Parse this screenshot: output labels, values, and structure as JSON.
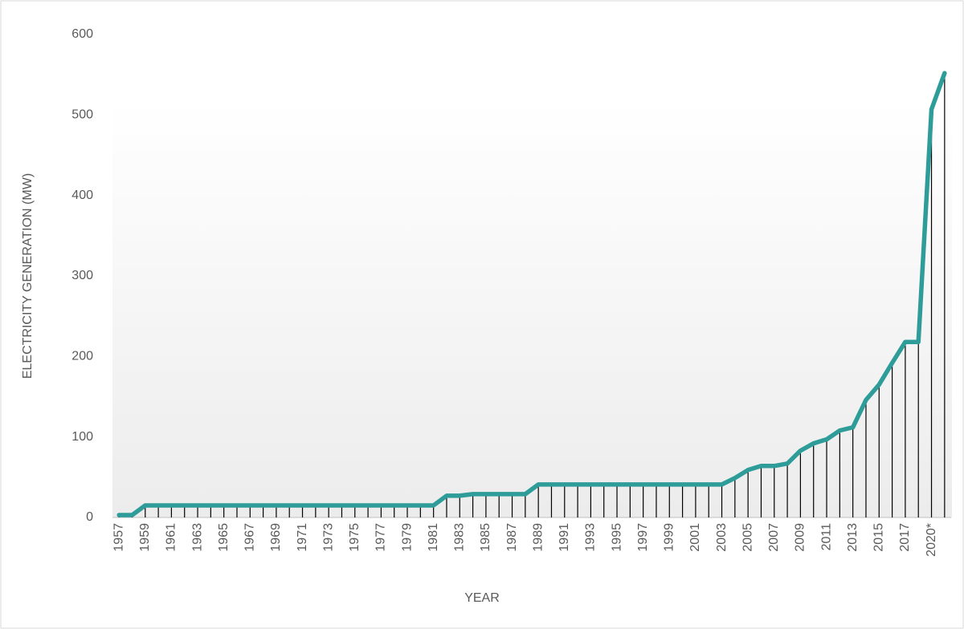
{
  "chart_data": {
    "type": "line",
    "x_label": "YEAR",
    "y_label": "ELECTRICITY GENERATION (MW)",
    "categories": [
      "1957",
      null,
      "1959",
      null,
      "1961",
      null,
      "1963",
      null,
      "1965",
      null,
      "1967",
      null,
      "1969",
      null,
      "1971",
      null,
      "1973",
      null,
      "1975",
      null,
      "1977",
      null,
      "1979",
      null,
      "1981",
      null,
      "1983",
      null,
      "1985",
      null,
      "1987",
      null,
      "1989",
      null,
      "1991",
      null,
      "1993",
      null,
      "1995",
      null,
      "1997",
      null,
      "1999",
      null,
      "2001",
      null,
      "2003",
      null,
      "2005",
      null,
      "2007",
      null,
      "2009",
      null,
      "2011",
      null,
      "2013",
      null,
      "2015",
      null,
      "2017",
      null,
      "2020*",
      null
    ],
    "values": [
      3,
      3,
      15,
      15,
      15,
      15,
      15,
      15,
      15,
      15,
      15,
      15,
      15,
      15,
      15,
      15,
      15,
      15,
      15,
      15,
      15,
      15,
      15,
      15,
      15,
      27,
      27,
      29,
      29,
      29,
      29,
      29,
      41,
      41,
      41,
      41,
      41,
      41,
      41,
      41,
      41,
      41,
      41,
      41,
      41,
      41,
      41,
      49,
      59,
      64,
      64,
      67,
      83,
      92,
      97,
      108,
      112,
      146,
      165,
      192,
      218,
      218,
      507,
      552
    ],
    "color": "#2e9c98",
    "drop_lines": true,
    "ylim": [
      0,
      600
    ],
    "yticks": [
      0,
      100,
      200,
      300,
      400,
      500,
      600
    ],
    "grid": false
  }
}
